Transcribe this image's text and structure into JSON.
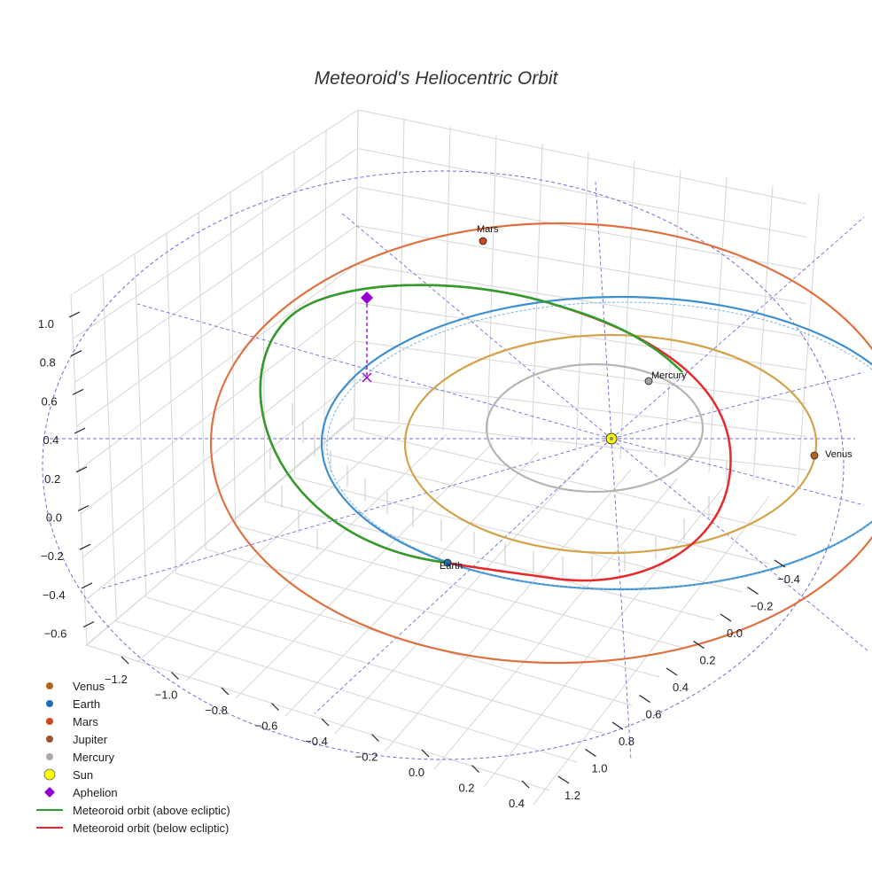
{
  "chart_data": {
    "type": "scatter",
    "title": "Meteoroid's Heliocentric Orbit",
    "projection": "3d",
    "axes": {
      "x": {
        "ticks": [
          -1.2,
          -1.0,
          -0.8,
          -0.6,
          -0.4,
          -0.2,
          0.0,
          0.2,
          0.4
        ],
        "tick_labels": [
          "−1.2",
          "−1.0",
          "−0.8",
          "−0.6",
          "−0.4",
          "−0.2",
          "0.0",
          "0.2",
          "0.4"
        ]
      },
      "y": {
        "ticks": [
          -0.4,
          -0.2,
          0.0,
          0.2,
          0.4,
          0.6,
          0.8,
          1.0,
          1.2
        ],
        "tick_labels": [
          "−0.4",
          "−0.2",
          "0.0",
          "0.2",
          "0.4",
          "0.6",
          "0.8",
          "1.0",
          "1.2"
        ]
      },
      "z": {
        "ticks": [
          -0.6,
          -0.4,
          -0.2,
          0.0,
          0.2,
          0.4,
          0.6,
          0.8,
          1.0
        ],
        "tick_labels": [
          "−0.6",
          "−0.4",
          "−0.2",
          "0.0",
          "0.2",
          "0.4",
          "0.6",
          "0.8",
          "1.0"
        ]
      },
      "grid": true
    },
    "planets": [
      {
        "name": "Venus",
        "label": "Venus",
        "color": "#b5651d",
        "orbit_color": "#d4a24a"
      },
      {
        "name": "Earth",
        "label": "Earth",
        "color": "#1f6fb5",
        "orbit_color": "#3d8fcf"
      },
      {
        "name": "Mars",
        "label": "Mars",
        "color": "#cc4a1a",
        "orbit_color": "#e07040"
      },
      {
        "name": "Jupiter",
        "label": "",
        "color": "#a0522d",
        "orbit_color": "#6b6bdc"
      },
      {
        "name": "Mercury",
        "label": "Mercury",
        "color": "#a0a0a0",
        "orbit_color": "#b8b4b0"
      }
    ],
    "sun": {
      "name": "Sun",
      "color": "#ffff00"
    },
    "aphelion": {
      "name": "Aphelion",
      "color": "#9400d3"
    },
    "meteoroid": {
      "above_label": "Meteoroid orbit (above ecliptic)",
      "above_color": "#2ca02c",
      "below_label": "Meteoroid orbit (below ecliptic)",
      "below_color": "#e8282a"
    },
    "legend": {
      "position": "lower-left",
      "entries": [
        {
          "label": "Venus",
          "marker": "circle",
          "color": "#b5651d"
        },
        {
          "label": "Earth",
          "marker": "circle",
          "color": "#1f6fb5"
        },
        {
          "label": "Mars",
          "marker": "circle",
          "color": "#cc4a1a"
        },
        {
          "label": "Jupiter",
          "marker": "circle",
          "color": "#a0522d"
        },
        {
          "label": "Mercury",
          "marker": "circle",
          "color": "#b0a8a4"
        },
        {
          "label": "Sun",
          "marker": "circle-large",
          "color": "#ffff00"
        },
        {
          "label": "Aphelion",
          "marker": "diamond",
          "color": "#9400d3"
        },
        {
          "label": "Meteoroid orbit (above ecliptic)",
          "marker": "line",
          "color": "#2ca02c"
        },
        {
          "label": "Meteoroid orbit (below ecliptic)",
          "marker": "line",
          "color": "#e8282a"
        }
      ]
    }
  }
}
